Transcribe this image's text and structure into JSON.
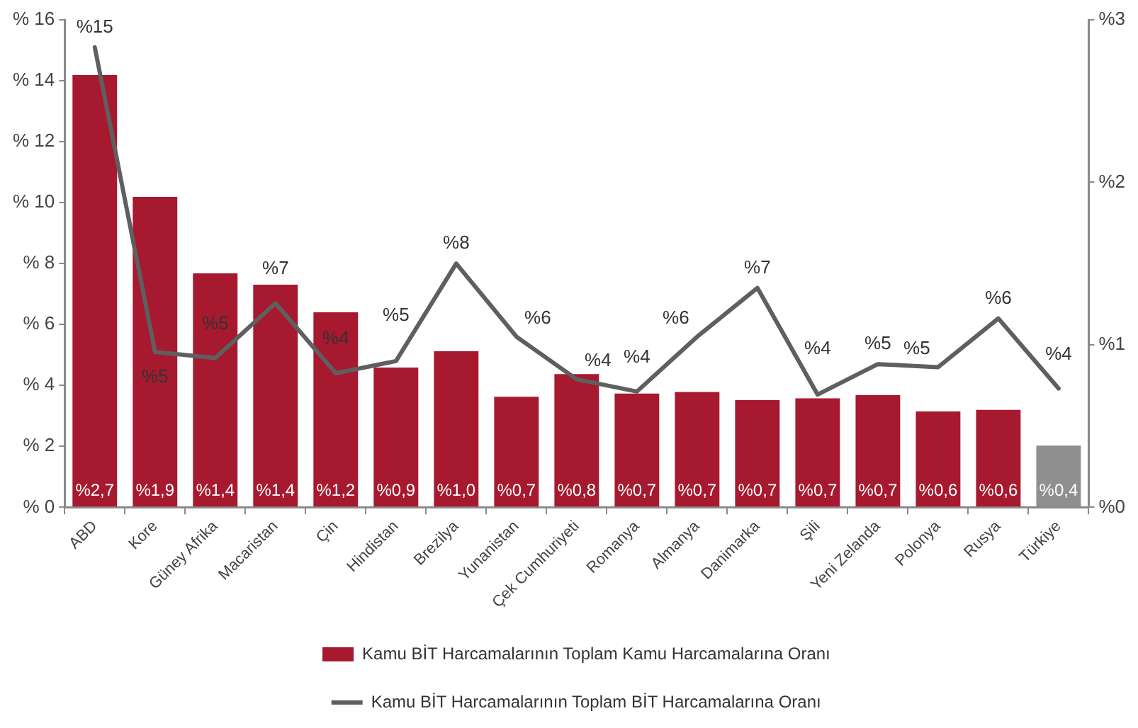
{
  "chart_data": {
    "type": "bar",
    "categories": [
      "ABD",
      "Kore",
      "Güney Afrika",
      "Macaristan",
      "Çin",
      "Hindistan",
      "Brezilya",
      "Yunanistan",
      "Çek Cumhuriyeti",
      "Romanya",
      "Almanya",
      "Danimarka",
      "Şili",
      "Yeni Zelanda",
      "Polonya",
      "Rusya",
      "Türkiye"
    ],
    "series": [
      {
        "name": "Kamu BİT Harcamalarının Toplam Kamu Harcamalarına Oranı",
        "axis": "y2",
        "color": "#a6192e",
        "colors": [
          "#a6192e",
          "#a6192e",
          "#a6192e",
          "#a6192e",
          "#a6192e",
          "#a6192e",
          "#a6192e",
          "#a6192e",
          "#a6192e",
          "#a6192e",
          "#a6192e",
          "#a6192e",
          "#a6192e",
          "#a6192e",
          "#a6192e",
          "#a6192e",
          "#8f8f8f"
        ],
        "values": [
          2.66,
          1.91,
          1.44,
          1.37,
          1.2,
          0.86,
          0.96,
          0.68,
          0.82,
          0.7,
          0.71,
          0.66,
          0.67,
          0.69,
          0.59,
          0.6,
          0.38
        ],
        "value_labels": [
          "%2,7",
          "%1,9",
          "%1,4",
          "%1,4",
          "%1,2",
          "%0,9",
          "%1,0",
          "%0,7",
          "%0,8",
          "%0,7",
          "%0,7",
          "%0,7",
          "%0,7",
          "%0,7",
          "%0,6",
          "%0,6",
          "%0,4"
        ]
      },
      {
        "name": "Kamu BİT Harcamalarının Toplam BİT Harcamalarına Oranı",
        "type": "line",
        "color": "#5f5f5f",
        "values": [
          15.1,
          5.1,
          4.9,
          6.7,
          4.4,
          4.8,
          8.0,
          5.6,
          4.2,
          3.8,
          5.6,
          7.2,
          3.7,
          4.7,
          4.6,
          6.2,
          3.9
        ],
        "value_labels": [
          "%15",
          "%5",
          "%5",
          "%7",
          "%4",
          "%5",
          "%8",
          "%6",
          "%4",
          "%4",
          "%6",
          "%7",
          "%4",
          "%5",
          "%5",
          "%6",
          "%4"
        ]
      }
    ],
    "ylim": [
      0,
      16
    ],
    "yticks": [
      {
        "value": 0,
        "label": "% 0"
      },
      {
        "value": 2,
        "label": "% 2"
      },
      {
        "value": 4,
        "label": "% 4"
      },
      {
        "value": 6,
        "label": "% 6"
      },
      {
        "value": 8,
        "label": "% 8"
      },
      {
        "value": 10,
        "label": "% 10"
      },
      {
        "value": 12,
        "label": "% 12"
      },
      {
        "value": 14,
        "label": "% 14"
      },
      {
        "value": 16,
        "label": "% 16"
      }
    ],
    "y2lim": [
      0,
      3
    ],
    "y2ticks": [
      {
        "value": 0,
        "label": "%0"
      },
      {
        "value": 1,
        "label": "%1"
      },
      {
        "value": 2,
        "label": "%2"
      },
      {
        "value": 3,
        "label": "%3"
      }
    ],
    "legend": "bottom",
    "line_style": "solid"
  }
}
